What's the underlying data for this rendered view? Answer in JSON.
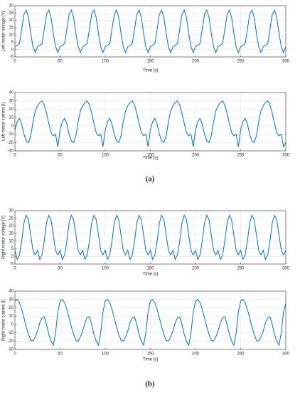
{
  "chart_data": [
    {
      "type": "line",
      "ylabel": "Left motor voltage [V]",
      "xlabel": "Time [s]",
      "color": "#0072bd",
      "grid": true,
      "xlim": [
        0,
        300
      ],
      "xticks": [
        0,
        50,
        100,
        150,
        200,
        250,
        300
      ],
      "ylim": [
        -5,
        30
      ],
      "yticks": [
        -5,
        0,
        5,
        10,
        15,
        20,
        25,
        30
      ],
      "x": [
        0,
        2.5,
        5,
        7.5,
        10,
        12.5,
        15,
        17.5,
        20,
        22.5,
        25,
        27.5,
        30,
        32.5,
        35,
        37.5,
        40,
        42.5,
        45,
        47.5,
        50,
        52.5,
        55,
        57.5,
        60,
        62.5,
        65,
        67.5,
        70,
        72.5,
        75,
        77.5,
        80,
        82.5,
        85,
        87.5,
        90,
        92.5,
        95,
        97.5,
        100,
        102.5,
        105,
        107.5,
        110,
        112.5,
        115,
        117.5,
        120,
        122.5,
        125,
        127.5,
        130,
        132.5,
        135,
        137.5,
        140,
        142.5,
        145,
        147.5,
        150,
        152.5,
        155,
        157.5,
        160,
        162.5,
        165,
        167.5,
        170,
        172.5,
        175,
        177.5,
        180,
        182.5,
        185,
        187.5,
        190,
        192.5,
        195,
        197.5,
        200,
        202.5,
        205,
        207.5,
        210,
        212.5,
        215,
        217.5,
        220,
        222.5,
        225,
        227.5,
        230,
        232.5,
        235,
        237.5,
        240,
        242.5,
        245,
        247.5,
        250,
        252.5,
        255,
        257.5,
        260,
        262.5,
        265,
        267.5,
        270,
        272.5,
        275,
        277.5,
        280,
        282.5,
        285,
        287.5,
        290,
        292.5,
        295,
        297.5,
        300
      ],
      "values": [
        2,
        3,
        4,
        14,
        24,
        27,
        22,
        11,
        2,
        -2,
        2,
        3,
        4,
        14,
        24,
        27,
        22,
        11,
        2,
        -2,
        2,
        3,
        4,
        14,
        24,
        27,
        22,
        11,
        2,
        -2,
        2,
        3,
        4,
        14,
        24,
        27,
        22,
        11,
        2,
        -2,
        2,
        3,
        4,
        14,
        24,
        27,
        22,
        11,
        2,
        -2,
        2,
        3,
        4,
        14,
        24,
        27,
        22,
        11,
        2,
        -2,
        2,
        3,
        4,
        14,
        24,
        27,
        22,
        11,
        2,
        -2,
        2,
        3,
        4,
        14,
        24,
        27,
        22,
        11,
        2,
        -2,
        2,
        3,
        4,
        14,
        24,
        27,
        22,
        11,
        2,
        -2,
        2,
        3,
        4,
        14,
        24,
        27,
        22,
        11,
        2,
        -2,
        2,
        3,
        4,
        14,
        24,
        27,
        22,
        11,
        2,
        -2,
        2,
        3,
        4,
        14,
        24,
        27,
        22,
        11,
        2,
        -2,
        2
      ]
    },
    {
      "type": "line",
      "ylabel": "Left motor current [I]",
      "xlabel": "Time [s]",
      "color": "#0072bd",
      "grid": true,
      "xlim": [
        0,
        300
      ],
      "xticks": [
        0,
        50,
        100,
        150,
        200,
        250,
        300
      ],
      "ylim": [
        -30,
        40
      ],
      "yticks": [
        -30,
        -20,
        -10,
        0,
        10,
        20,
        30,
        40
      ],
      "x": [
        0,
        2.5,
        5,
        7.5,
        10,
        12.5,
        15,
        17.5,
        20,
        22.5,
        25,
        27.5,
        30,
        32.5,
        35,
        37.5,
        40,
        42.5,
        45,
        47.5,
        50,
        52.5,
        55,
        57.5,
        60,
        62.5,
        65,
        67.5,
        70,
        72.5,
        75,
        77.5,
        80,
        82.5,
        85,
        87.5,
        90,
        92.5,
        95,
        97.5,
        100,
        102.5,
        105,
        107.5,
        110,
        112.5,
        115,
        117.5,
        120,
        122.5,
        125,
        127.5,
        130,
        132.5,
        135,
        137.5,
        140,
        142.5,
        145,
        147.5,
        150,
        152.5,
        155,
        157.5,
        160,
        162.5,
        165,
        167.5,
        170,
        172.5,
        175,
        177.5,
        180,
        182.5,
        185,
        187.5,
        190,
        192.5,
        195,
        197.5,
        200,
        202.5,
        205,
        207.5,
        210,
        212.5,
        215,
        217.5,
        220,
        222.5,
        225,
        227.5,
        230,
        232.5,
        235,
        237.5,
        240,
        242.5,
        245,
        247.5,
        250,
        252.5,
        255,
        257.5,
        260,
        262.5,
        265,
        267.5,
        270,
        272.5,
        275,
        277.5,
        280,
        282.5,
        285,
        287.5,
        290,
        292.5,
        295,
        297.5,
        300
      ],
      "values": [
        -5,
        5,
        9,
        2,
        -10,
        -18,
        -20,
        -12,
        5,
        18,
        24,
        28,
        30,
        25,
        15,
        3,
        -8,
        -12,
        -10,
        -25,
        -5,
        5,
        9,
        2,
        -10,
        -18,
        -20,
        -12,
        5,
        18,
        24,
        28,
        30,
        25,
        15,
        3,
        -8,
        -12,
        -10,
        -25,
        -5,
        5,
        9,
        2,
        -10,
        -18,
        -20,
        -12,
        5,
        18,
        24,
        28,
        30,
        25,
        15,
        3,
        -8,
        -12,
        -10,
        -25,
        -5,
        5,
        9,
        2,
        -10,
        -18,
        -20,
        -12,
        5,
        18,
        24,
        28,
        30,
        25,
        15,
        3,
        -8,
        -12,
        -10,
        -25,
        -5,
        5,
        9,
        2,
        -10,
        -18,
        -20,
        -12,
        5,
        18,
        24,
        28,
        30,
        25,
        15,
        3,
        -8,
        -12,
        -10,
        -25,
        -5,
        5,
        9,
        2,
        -10,
        -18,
        -20,
        -12,
        5,
        18,
        24,
        28,
        30,
        25,
        15,
        3,
        -8,
        -12,
        -10,
        -25,
        -20
      ]
    },
    {
      "type": "line",
      "ylabel": "Right motor voltage [V]",
      "xlabel": "Time [s]",
      "color": "#0072bd",
      "grid": true,
      "xlim": [
        0,
        300
      ],
      "xticks": [
        0,
        50,
        100,
        150,
        200,
        250,
        300
      ],
      "ylim": [
        -5,
        30
      ],
      "yticks": [
        -5,
        0,
        5,
        10,
        15,
        20,
        25,
        30
      ],
      "x": [
        0,
        2.5,
        5,
        7.5,
        10,
        12.5,
        15,
        17.5,
        20,
        22.5,
        25,
        27.5,
        30,
        32.5,
        35,
        37.5,
        40,
        42.5,
        45,
        47.5,
        50,
        52.5,
        55,
        57.5,
        60,
        62.5,
        65,
        67.5,
        70,
        72.5,
        75,
        77.5,
        80,
        82.5,
        85,
        87.5,
        90,
        92.5,
        95,
        97.5,
        100,
        102.5,
        105,
        107.5,
        110,
        112.5,
        115,
        117.5,
        120,
        122.5,
        125,
        127.5,
        130,
        132.5,
        135,
        137.5,
        140,
        142.5,
        145,
        147.5,
        150,
        152.5,
        155,
        157.5,
        160,
        162.5,
        165,
        167.5,
        170,
        172.5,
        175,
        177.5,
        180,
        182.5,
        185,
        187.5,
        190,
        192.5,
        195,
        197.5,
        200,
        202.5,
        205,
        207.5,
        210,
        212.5,
        215,
        217.5,
        220,
        222.5,
        225,
        227.5,
        230,
        232.5,
        235,
        237.5,
        240,
        242.5,
        245,
        247.5,
        250,
        252.5,
        255,
        257.5,
        260,
        262.5,
        265,
        267.5,
        270,
        272.5,
        275,
        277.5,
        280,
        282.5,
        285,
        287.5,
        290,
        292.5,
        295,
        297.5,
        300
      ],
      "values": [
        4,
        -2,
        1,
        10,
        22,
        27,
        24,
        14,
        4,
        1,
        4,
        -2,
        1,
        10,
        22,
        27,
        24,
        14,
        4,
        1,
        4,
        -2,
        1,
        10,
        22,
        27,
        24,
        14,
        4,
        1,
        4,
        -2,
        1,
        10,
        22,
        27,
        24,
        14,
        4,
        1,
        4,
        -2,
        1,
        10,
        22,
        27,
        24,
        14,
        4,
        1,
        4,
        -2,
        1,
        10,
        22,
        27,
        24,
        14,
        4,
        1,
        4,
        -2,
        1,
        10,
        22,
        27,
        24,
        14,
        4,
        1,
        4,
        -2,
        1,
        10,
        22,
        27,
        24,
        14,
        4,
        1,
        4,
        -2,
        1,
        10,
        22,
        27,
        24,
        14,
        4,
        1,
        4,
        -2,
        1,
        10,
        22,
        27,
        24,
        14,
        4,
        1,
        4,
        -2,
        1,
        10,
        22,
        27,
        24,
        14,
        4,
        1,
        4,
        -2,
        1,
        10,
        22,
        27,
        24,
        14,
        4,
        1,
        4
      ]
    },
    {
      "type": "line",
      "ylabel": "Right motor current [I]",
      "xlabel": "Time [s]",
      "color": "#0072bd",
      "grid": true,
      "xlim": [
        0,
        300
      ],
      "xticks": [
        0,
        50,
        100,
        150,
        200,
        250,
        300
      ],
      "ylim": [
        -30,
        40
      ],
      "yticks": [
        -30,
        -20,
        -10,
        0,
        10,
        20,
        30,
        40
      ],
      "x": [
        0,
        2.5,
        5,
        7.5,
        10,
        12.5,
        15,
        17.5,
        20,
        22.5,
        25,
        27.5,
        30,
        32.5,
        35,
        37.5,
        40,
        42.5,
        45,
        47.5,
        50,
        52.5,
        55,
        57.5,
        60,
        62.5,
        65,
        67.5,
        70,
        72.5,
        75,
        77.5,
        80,
        82.5,
        85,
        87.5,
        90,
        92.5,
        95,
        97.5,
        100,
        102.5,
        105,
        107.5,
        110,
        112.5,
        115,
        117.5,
        120,
        122.5,
        125,
        127.5,
        130,
        132.5,
        135,
        137.5,
        140,
        142.5,
        145,
        147.5,
        150,
        152.5,
        155,
        157.5,
        160,
        162.5,
        165,
        167.5,
        170,
        172.5,
        175,
        177.5,
        180,
        182.5,
        185,
        187.5,
        190,
        192.5,
        195,
        197.5,
        200,
        202.5,
        205,
        207.5,
        210,
        212.5,
        215,
        217.5,
        220,
        222.5,
        225,
        227.5,
        230,
        232.5,
        235,
        237.5,
        240,
        242.5,
        245,
        247.5,
        250,
        252.5,
        255,
        257.5,
        260,
        262.5,
        265,
        267.5,
        270,
        272.5,
        275,
        277.5,
        280,
        282.5,
        285,
        287.5,
        290,
        292.5,
        295,
        297.5,
        300
      ],
      "values": [
        28,
        30,
        26,
        18,
        8,
        -3,
        -12,
        -19,
        -20,
        -15,
        -8,
        2,
        8,
        9,
        0,
        -12,
        -20,
        -25,
        -10,
        15,
        28,
        30,
        26,
        18,
        8,
        -3,
        -12,
        -19,
        -20,
        -15,
        -8,
        2,
        8,
        9,
        0,
        -12,
        -20,
        -25,
        -10,
        15,
        28,
        30,
        26,
        18,
        8,
        -3,
        -12,
        -19,
        -20,
        -15,
        -8,
        2,
        8,
        9,
        0,
        -12,
        -20,
        -25,
        -10,
        15,
        28,
        30,
        26,
        18,
        8,
        -3,
        -12,
        -19,
        -20,
        -15,
        -8,
        2,
        8,
        9,
        0,
        -12,
        -20,
        -25,
        -10,
        15,
        28,
        30,
        26,
        18,
        8,
        -3,
        -12,
        -19,
        -20,
        -15,
        -8,
        2,
        8,
        9,
        0,
        -12,
        -20,
        -25,
        -10,
        15,
        28,
        30,
        26,
        18,
        8,
        -3,
        -12,
        -19,
        -20,
        -15,
        -8,
        2,
        8,
        9,
        0,
        -12,
        -20,
        -25,
        -10,
        15,
        25
      ]
    }
  ],
  "captions": [
    "(a)",
    "(b)"
  ]
}
